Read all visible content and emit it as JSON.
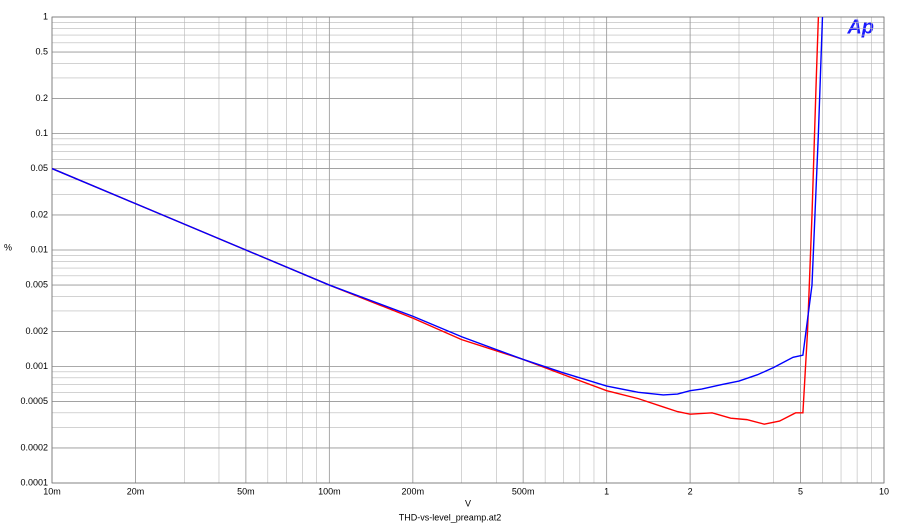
{
  "chart_data": {
    "type": "line",
    "title": "THD-vs-level_preamp.at2",
    "xlabel": "V",
    "ylabel": "%",
    "logo": "Ap",
    "xscale": "log",
    "yscale": "log",
    "grid": true,
    "xlim": [
      0.01,
      10
    ],
    "ylim": [
      0.0001,
      1
    ],
    "xticks": [
      {
        "value": 0.01,
        "label": "10m"
      },
      {
        "value": 0.02,
        "label": "20m"
      },
      {
        "value": 0.05,
        "label": "50m"
      },
      {
        "value": 0.1,
        "label": "100m"
      },
      {
        "value": 0.2,
        "label": "200m"
      },
      {
        "value": 0.5,
        "label": "500m"
      },
      1,
      2,
      5,
      10
    ],
    "yticks": [
      1,
      0.5,
      0.2,
      0.1,
      0.05,
      0.02,
      0.01,
      0.005,
      0.002,
      0.001,
      0.0005,
      0.0002,
      0.0001
    ],
    "series": [
      {
        "color": "#ff0000",
        "x": [
          0.01,
          0.02,
          0.05,
          0.1,
          0.2,
          0.3,
          0.5,
          0.7,
          1,
          1.3,
          1.6,
          1.8,
          2,
          2.4,
          2.8,
          3.2,
          3.7,
          4.2,
          4.8,
          5.1,
          5.3,
          5.5,
          5.7,
          5.8
        ],
        "values": [
          0.05,
          0.025,
          0.01,
          0.005,
          0.0026,
          0.0017,
          0.00115,
          0.00085,
          0.00062,
          0.00053,
          0.00045,
          0.00041,
          0.00039,
          0.0004,
          0.00036,
          0.00035,
          0.00032,
          0.00034,
          0.0004,
          0.0004,
          0.002,
          0.02,
          0.3,
          1
        ]
      },
      {
        "color": "#0000ff",
        "x": [
          0.01,
          0.02,
          0.05,
          0.1,
          0.2,
          0.3,
          0.5,
          0.7,
          1,
          1.3,
          1.6,
          1.8,
          2,
          2.2,
          2.6,
          3,
          3.5,
          4,
          4.7,
          5.1,
          5.5,
          5.8,
          6
        ],
        "values": [
          0.05,
          0.025,
          0.01,
          0.005,
          0.0027,
          0.0018,
          0.00115,
          0.00088,
          0.00068,
          0.0006,
          0.00057,
          0.00058,
          0.00062,
          0.00064,
          0.0007,
          0.00075,
          0.00085,
          0.00098,
          0.0012,
          0.00125,
          0.005,
          0.1,
          1
        ]
      }
    ]
  }
}
